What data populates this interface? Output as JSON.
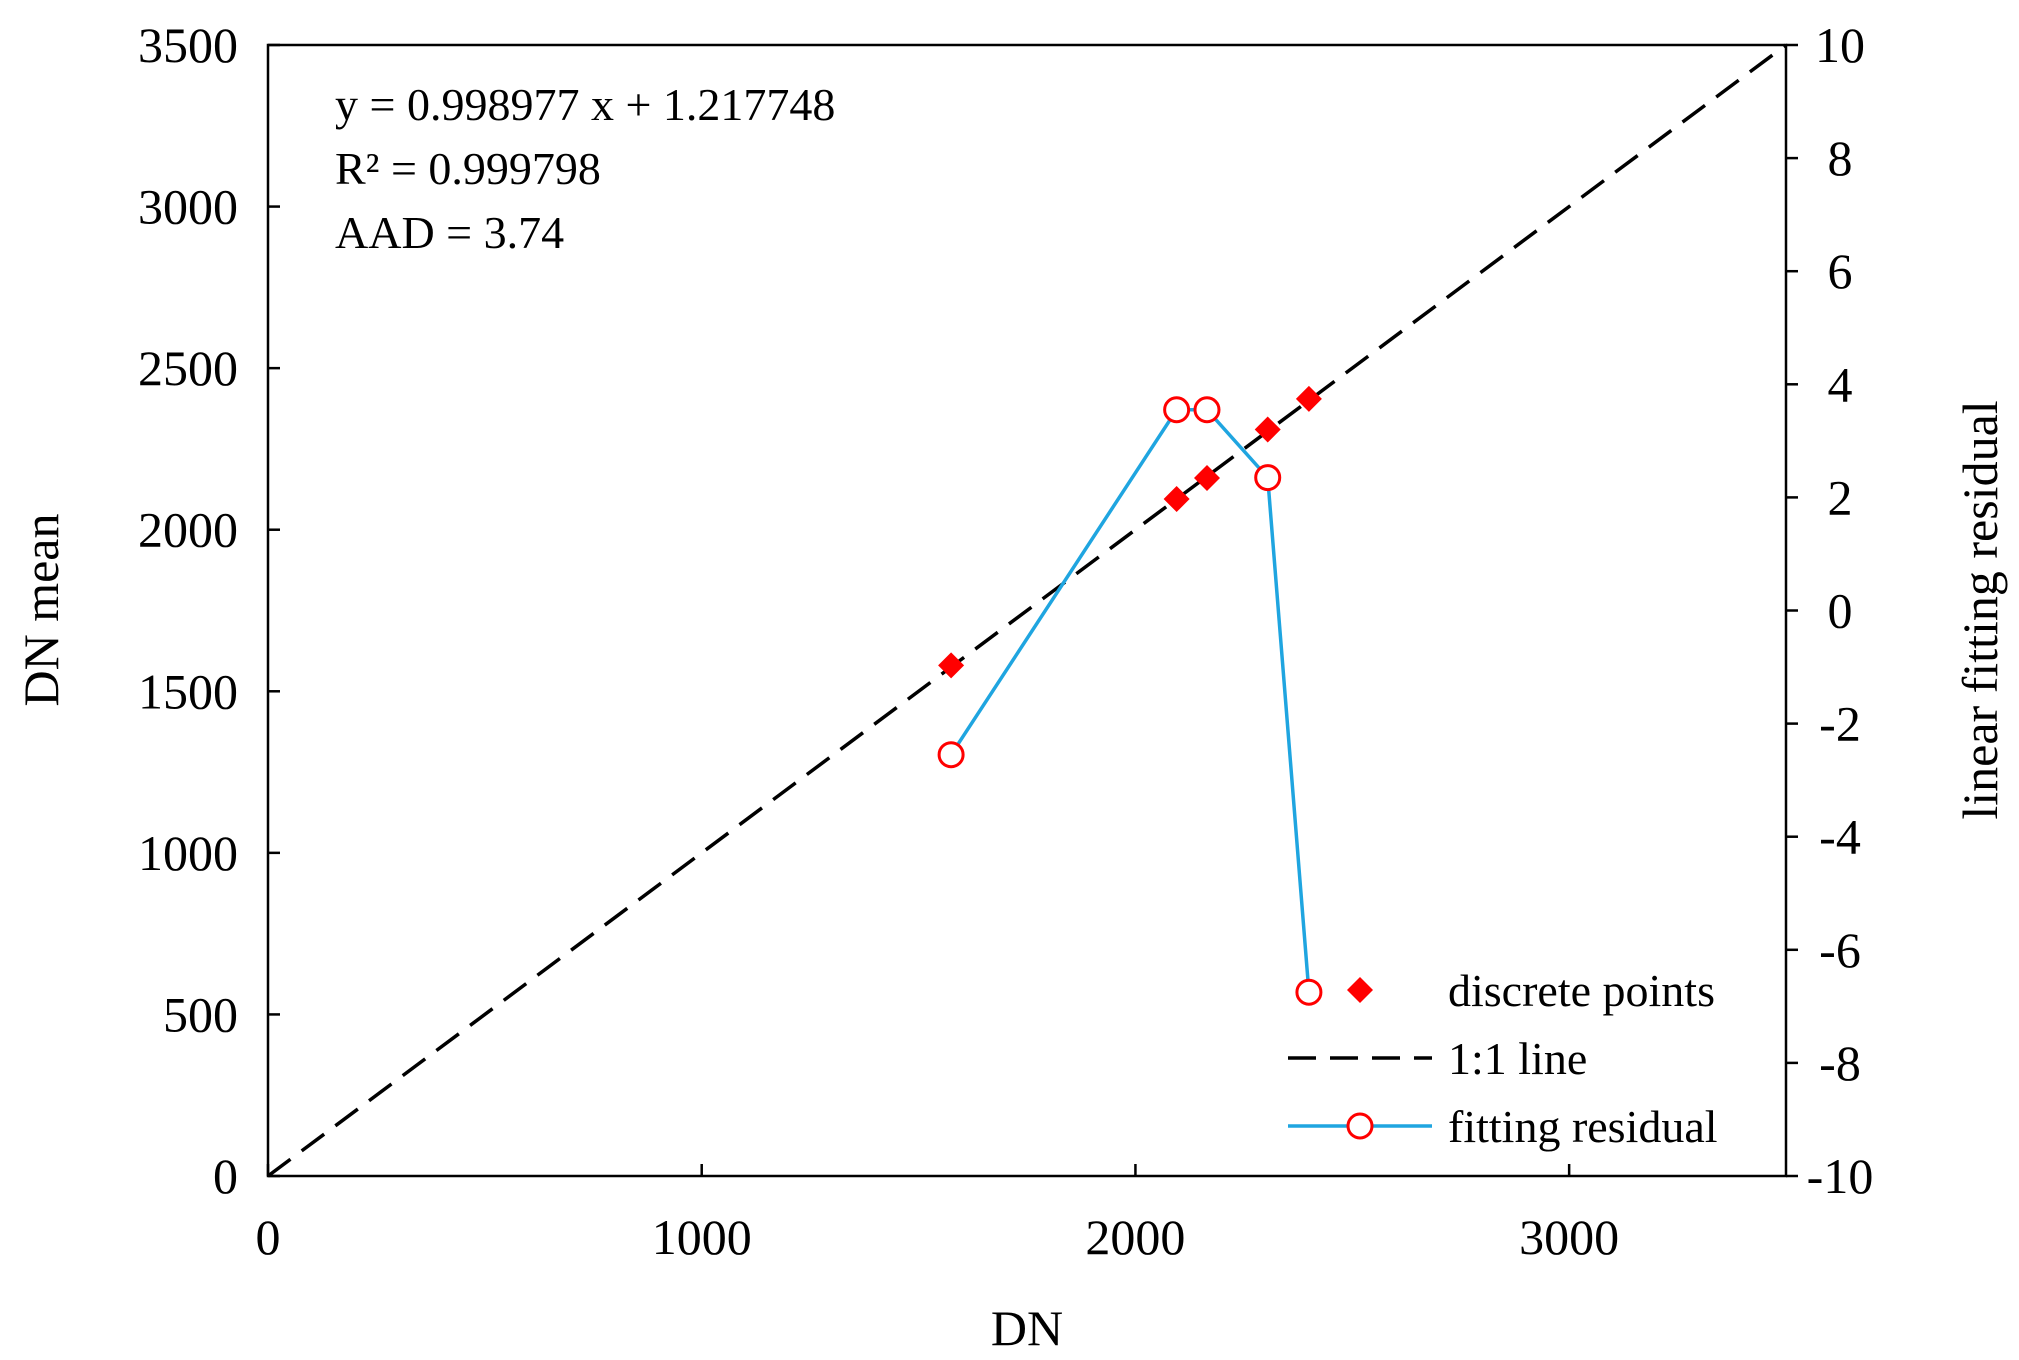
{
  "chart_data": {
    "type": "scatter",
    "xlabel": "DN",
    "ylabel": "DN mean",
    "y2label": "linear fitting residual",
    "xlim": [
      0,
      3500
    ],
    "ylim": [
      0,
      3500
    ],
    "y2lim": [
      -10,
      10
    ],
    "xticks": [
      0,
      1000,
      2000,
      3000
    ],
    "xtick_labels": [
      "0",
      "1000",
      "2000",
      "3000"
    ],
    "yticks": [
      0,
      500,
      1000,
      1500,
      2000,
      2500,
      3000,
      3500
    ],
    "ytick_labels": [
      "0",
      "500",
      "1000",
      "1500",
      "2000",
      "2500",
      "3000",
      "3500"
    ],
    "y2ticks": [
      -10,
      -8,
      -6,
      -4,
      -2,
      0,
      2,
      4,
      6,
      8,
      10
    ],
    "y2tick_labels": [
      "-10",
      "-8",
      "-6",
      "-4",
      "-2",
      "0",
      "2",
      "4",
      "6",
      "8",
      "10"
    ],
    "annotations": [
      "y = 0.998977 x + 1.217748",
      "R² = 0.999798",
      "AAD =  3.74"
    ],
    "legend_position": "bottom-right",
    "series": [
      {
        "name": "discrete points",
        "kind": "marker",
        "marker": "diamond",
        "color": "#ff0000",
        "axis": "left",
        "x": [
          1575,
          2095,
          2165,
          2305,
          2400
        ],
        "y": [
          1580,
          2095,
          2160,
          2310,
          2405
        ]
      },
      {
        "name": "1:1 line",
        "kind": "dashed-line",
        "color": "#000000",
        "axis": "left",
        "x": [
          0,
          3500
        ],
        "y": [
          0,
          3500
        ]
      },
      {
        "name": "fitting residual",
        "kind": "line-marker",
        "marker": "open-circle",
        "color": "#1fa5e0",
        "marker_color": "#ff0000",
        "axis": "right",
        "x": [
          1575,
          2095,
          2165,
          2305,
          2400
        ],
        "y": [
          -2.55,
          3.55,
          3.55,
          2.35,
          -6.75
        ]
      }
    ]
  }
}
